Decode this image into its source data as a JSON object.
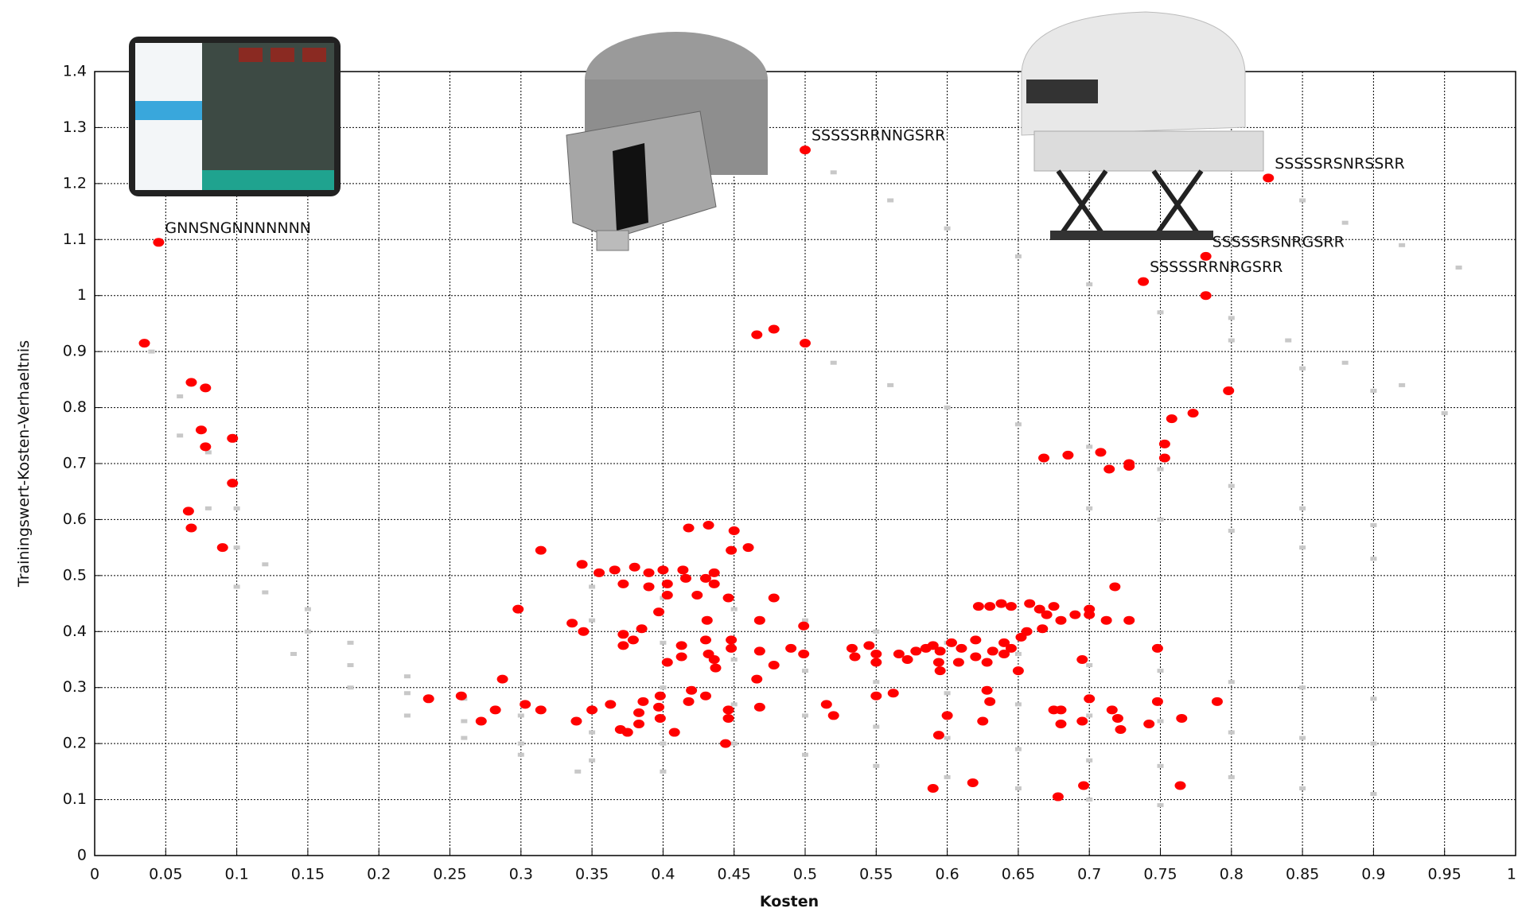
{
  "chart_data": {
    "type": "scatter",
    "xlabel": "Kosten",
    "ylabel": "Trainingswert-Kosten-Verhaeltnis",
    "xlim": [
      0,
      1
    ],
    "ylim": [
      0,
      1.4
    ],
    "xticks": [
      0,
      0.05,
      0.1,
      0.15,
      0.2,
      0.25,
      0.3,
      0.35,
      0.4,
      0.45,
      0.5,
      0.55,
      0.6,
      0.65,
      0.7,
      0.75,
      0.8,
      0.85,
      0.9,
      0.95,
      1
    ],
    "yticks": [
      0,
      0.1,
      0.2,
      0.3,
      0.4,
      0.5,
      0.6,
      0.7,
      0.8,
      0.9,
      1,
      1.1,
      1.2,
      1.3,
      1.4
    ],
    "grid": true,
    "series": [
      {
        "color": "#c8c8c8",
        "x": [
          0.04,
          0.06,
          0.08,
          0.1,
          0.12,
          0.15,
          0.18,
          0.22,
          0.26,
          0.3,
          0.35,
          0.4,
          0.06,
          0.08,
          0.1,
          0.12,
          0.15,
          0.18,
          0.22,
          0.26,
          0.3,
          0.35,
          0.4,
          0.1,
          0.14,
          0.18,
          0.22,
          0.26,
          0.3,
          0.34,
          0.35,
          0.4,
          0.45,
          0.5,
          0.55,
          0.6,
          0.65,
          0.7,
          0.75,
          0.8,
          0.85,
          0.9,
          0.35,
          0.4,
          0.45,
          0.5,
          0.55,
          0.6,
          0.65,
          0.7,
          0.75,
          0.8,
          0.85,
          0.9,
          0.4,
          0.45,
          0.5,
          0.55,
          0.6,
          0.65,
          0.7,
          0.75,
          0.8,
          0.85,
          0.9,
          0.45,
          0.5,
          0.55,
          0.6,
          0.65,
          0.7,
          0.75,
          0.52,
          0.56,
          0.6,
          0.65,
          0.7,
          0.75,
          0.8,
          0.85,
          0.9,
          0.95,
          0.52,
          0.56,
          0.6,
          0.65,
          0.7,
          0.75,
          0.8,
          0.85,
          0.9,
          0.85,
          0.88,
          0.92,
          0.96,
          0.8,
          0.84,
          0.88,
          0.92,
          0.7,
          0.75,
          0.8,
          0.85,
          0.9
        ],
        "values": [
          0.9,
          0.82,
          0.72,
          0.62,
          0.52,
          0.44,
          0.38,
          0.32,
          0.28,
          0.25,
          0.22,
          0.2,
          0.75,
          0.62,
          0.55,
          0.47,
          0.4,
          0.34,
          0.29,
          0.24,
          0.2,
          0.17,
          0.15,
          0.48,
          0.36,
          0.3,
          0.25,
          0.21,
          0.18,
          0.15,
          0.48,
          0.46,
          0.44,
          0.42,
          0.4,
          0.38,
          0.36,
          0.34,
          0.33,
          0.31,
          0.3,
          0.28,
          0.42,
          0.38,
          0.35,
          0.33,
          0.31,
          0.29,
          0.27,
          0.25,
          0.24,
          0.22,
          0.21,
          0.2,
          0.3,
          0.27,
          0.25,
          0.23,
          0.21,
          0.19,
          0.17,
          0.16,
          0.14,
          0.12,
          0.11,
          0.2,
          0.18,
          0.16,
          0.14,
          0.12,
          0.1,
          0.09,
          1.22,
          1.17,
          1.12,
          1.07,
          1.02,
          0.97,
          0.92,
          0.87,
          0.83,
          0.79,
          0.88,
          0.84,
          0.8,
          0.77,
          0.73,
          0.69,
          0.66,
          0.62,
          0.59,
          1.17,
          1.13,
          1.09,
          1.05,
          0.96,
          0.92,
          0.88,
          0.84,
          0.62,
          0.6,
          0.58,
          0.55,
          0.53
        ]
      },
      {
        "color": "#ff0000",
        "x": [
          0.035,
          0.045,
          0.068,
          0.078,
          0.075,
          0.078,
          0.097,
          0.097,
          0.066,
          0.068,
          0.09,
          0.5,
          0.466,
          0.478,
          0.5,
          0.826,
          0.782,
          0.738,
          0.782,
          0.798,
          0.773,
          0.758,
          0.753,
          0.753,
          0.728,
          0.728,
          0.714,
          0.708,
          0.685,
          0.668,
          0.418,
          0.432,
          0.45,
          0.46,
          0.448,
          0.314,
          0.343,
          0.355,
          0.366,
          0.38,
          0.39,
          0.4,
          0.414,
          0.416,
          0.43,
          0.436,
          0.436,
          0.372,
          0.39,
          0.403,
          0.403,
          0.424,
          0.446,
          0.478,
          0.298,
          0.397,
          0.336,
          0.431,
          0.468,
          0.344,
          0.372,
          0.385,
          0.499,
          0.379,
          0.372,
          0.413,
          0.43,
          0.448,
          0.448,
          0.468,
          0.413,
          0.432,
          0.436,
          0.403,
          0.437,
          0.478,
          0.49,
          0.499,
          0.466,
          0.287,
          0.235,
          0.258,
          0.303,
          0.282,
          0.272,
          0.314,
          0.339,
          0.35,
          0.363,
          0.37,
          0.375,
          0.383,
          0.383,
          0.386,
          0.398,
          0.397,
          0.398,
          0.408,
          0.42,
          0.418,
          0.43,
          0.446,
          0.446,
          0.444,
          0.468,
          0.515,
          0.52,
          0.55,
          0.562,
          0.533,
          0.535,
          0.545,
          0.55,
          0.55,
          0.566,
          0.572,
          0.578,
          0.585,
          0.59,
          0.595,
          0.594,
          0.595,
          0.603,
          0.608,
          0.61,
          0.62,
          0.62,
          0.628,
          0.632,
          0.64,
          0.64,
          0.645,
          0.622,
          0.63,
          0.638,
          0.645,
          0.658,
          0.665,
          0.67,
          0.675,
          0.68,
          0.69,
          0.7,
          0.7,
          0.712,
          0.718,
          0.728,
          0.656,
          0.652,
          0.667,
          0.695,
          0.65,
          0.628,
          0.63,
          0.6,
          0.594,
          0.625,
          0.675,
          0.68,
          0.68,
          0.695,
          0.7,
          0.716,
          0.72,
          0.722,
          0.742,
          0.748,
          0.748,
          0.765,
          0.79,
          0.59,
          0.618,
          0.678,
          0.696,
          0.764
        ],
        "values": [
          0.915,
          1.095,
          0.845,
          0.835,
          0.76,
          0.73,
          0.745,
          0.665,
          0.615,
          0.585,
          0.55,
          1.26,
          0.93,
          0.94,
          0.915,
          1.21,
          1.07,
          1.025,
          1.0,
          0.83,
          0.79,
          0.78,
          0.735,
          0.71,
          0.7,
          0.695,
          0.69,
          0.72,
          0.715,
          0.71,
          0.585,
          0.59,
          0.58,
          0.55,
          0.545,
          0.545,
          0.52,
          0.505,
          0.51,
          0.515,
          0.505,
          0.51,
          0.51,
          0.495,
          0.495,
          0.505,
          0.485,
          0.485,
          0.48,
          0.485,
          0.465,
          0.465,
          0.46,
          0.46,
          0.44,
          0.435,
          0.415,
          0.42,
          0.42,
          0.4,
          0.395,
          0.405,
          0.41,
          0.385,
          0.375,
          0.375,
          0.385,
          0.385,
          0.37,
          0.365,
          0.355,
          0.36,
          0.35,
          0.345,
          0.335,
          0.34,
          0.37,
          0.36,
          0.315,
          0.315,
          0.28,
          0.285,
          0.27,
          0.26,
          0.24,
          0.26,
          0.24,
          0.26,
          0.27,
          0.225,
          0.22,
          0.255,
          0.235,
          0.275,
          0.285,
          0.265,
          0.245,
          0.22,
          0.295,
          0.275,
          0.285,
          0.26,
          0.245,
          0.2,
          0.265,
          0.27,
          0.25,
          0.285,
          0.29,
          0.37,
          0.355,
          0.375,
          0.36,
          0.345,
          0.36,
          0.35,
          0.365,
          0.37,
          0.375,
          0.365,
          0.345,
          0.33,
          0.38,
          0.345,
          0.37,
          0.355,
          0.385,
          0.345,
          0.365,
          0.38,
          0.36,
          0.37,
          0.445,
          0.445,
          0.45,
          0.445,
          0.45,
          0.44,
          0.43,
          0.445,
          0.42,
          0.43,
          0.44,
          0.43,
          0.42,
          0.48,
          0.42,
          0.4,
          0.39,
          0.405,
          0.35,
          0.33,
          0.295,
          0.275,
          0.25,
          0.215,
          0.24,
          0.26,
          0.26,
          0.235,
          0.24,
          0.28,
          0.26,
          0.245,
          0.225,
          0.235,
          0.275,
          0.37,
          0.245,
          0.275,
          0.12,
          0.13,
          0.105,
          0.125,
          0.125
        ]
      }
    ],
    "annotations": [
      {
        "text": "GNNSNGNNNNNNN",
        "x": 0.045,
        "y": 1.095
      },
      {
        "text": "SSSSSRRNNGSRR",
        "x": 0.5,
        "y": 1.26
      },
      {
        "text": "SSSSSRSNRSSRR",
        "x": 0.826,
        "y": 1.21
      },
      {
        "text": "SSSSSRSNRGSRR",
        "x": 0.782,
        "y": 1.07
      },
      {
        "text": "SSSSSRRNRGSRR",
        "x": 0.738,
        "y": 1.025
      }
    ]
  }
}
